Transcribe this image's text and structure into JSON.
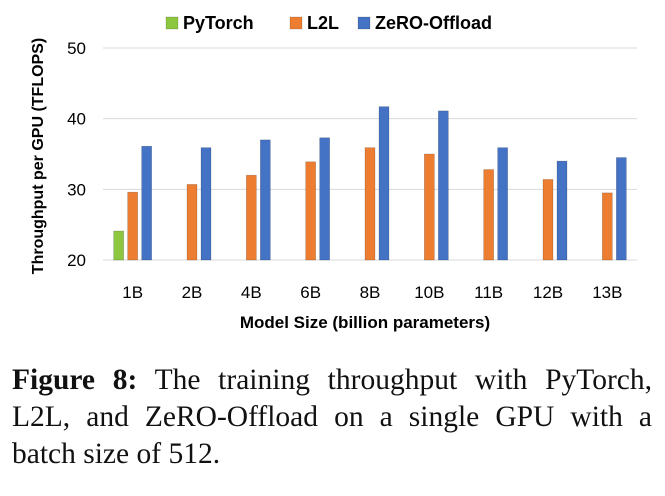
{
  "chart_data": {
    "type": "bar",
    "categories": [
      "1B",
      "2B",
      "4B",
      "6B",
      "8B",
      "10B",
      "11B",
      "12B",
      "13B"
    ],
    "series": [
      {
        "name": "PyTorch",
        "color": "#8dc63f",
        "values": [
          24.1,
          null,
          null,
          null,
          null,
          null,
          null,
          null,
          null
        ]
      },
      {
        "name": "L2L",
        "color": "#ed7d31",
        "values": [
          29.6,
          30.7,
          32.0,
          33.9,
          35.9,
          35.0,
          32.8,
          31.4,
          29.5
        ]
      },
      {
        "name": "ZeRO-Offload",
        "color": "#4472c4",
        "values": [
          36.1,
          35.9,
          37.0,
          37.3,
          41.7,
          41.1,
          35.9,
          34.0,
          34.5
        ]
      }
    ],
    "xlabel": "Model Size (billion parameters)",
    "ylabel": "Throughput per GPU (TFLOPS)",
    "ylim": [
      20,
      50
    ],
    "yticks": [
      20,
      30,
      40,
      50
    ],
    "grid": true,
    "legend": "top"
  },
  "caption": {
    "label": "Figure 8:",
    "text": "The training throughput with PyTorch, L2L, and ZeRO-Offload on a single GPU with a batch size of 512."
  }
}
